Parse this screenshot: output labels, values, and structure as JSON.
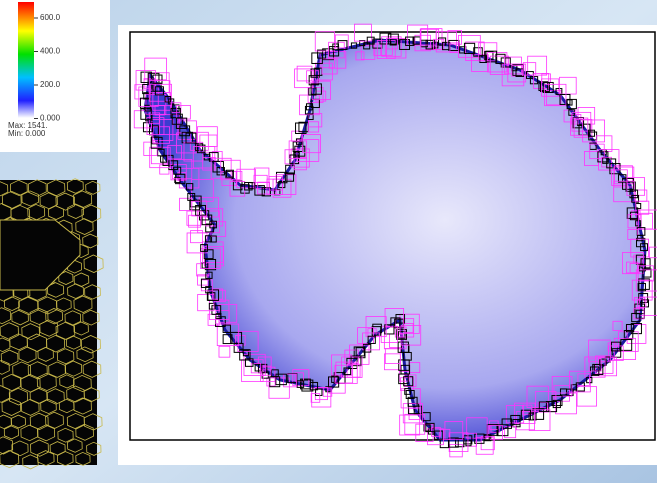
{
  "colorbar": {
    "tick_labels": [
      "600.0",
      "400.0",
      "200.0",
      "0.000"
    ],
    "max": "Max:  1541.",
    "min": "Min:  0.000"
  }
}
